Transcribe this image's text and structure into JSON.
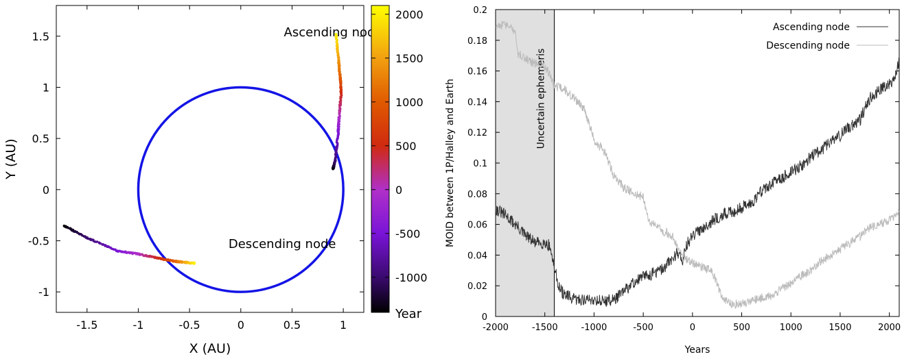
{
  "chart_data": [
    {
      "type": "scatter",
      "xlabel": "X (AU)",
      "ylabel": "Y (AU)",
      "xlim": [
        -1.8,
        1.2
      ],
      "ylim": [
        -1.2,
        1.8
      ],
      "xticks": [
        -1.5,
        -1,
        -0.5,
        0,
        0.5,
        1
      ],
      "yticks": [
        -1,
        -0.5,
        0,
        0.5,
        1,
        1.5
      ],
      "xtick_labels": [
        "-1.5",
        "-1",
        "-0.5",
        "0",
        "0.5",
        "1"
      ],
      "ytick_labels": [
        "-1",
        "-0.5",
        "0",
        "0.5",
        "1",
        "1.5"
      ],
      "earth_orbit": {
        "center": [
          0,
          0
        ],
        "radius": 1.0,
        "color": "#1414e6"
      },
      "colorbar": {
        "label": "Year",
        "range": [
          -1400,
          2100
        ],
        "ticks": [
          -1000,
          -500,
          0,
          500,
          1000,
          1500,
          2000
        ],
        "tick_labels": [
          "-1000",
          "-500",
          "0",
          "500",
          "1000",
          "1500",
          "2000"
        ],
        "stops": [
          {
            "year": -1400,
            "color": "#000000"
          },
          {
            "year": -1000,
            "color": "#3a0a6e"
          },
          {
            "year": -500,
            "color": "#7a14d8"
          },
          {
            "year": 0,
            "color": "#b030c8"
          },
          {
            "year": 500,
            "color": "#d02a10"
          },
          {
            "year": 1000,
            "color": "#e05a00"
          },
          {
            "year": 1500,
            "color": "#f2a010"
          },
          {
            "year": 2100,
            "color": "#ffff00"
          }
        ]
      },
      "series": [
        {
          "name": "Ascending node",
          "points": [
            {
              "year": -1400,
              "x": 0.9,
              "y": 0.2
            },
            {
              "year": -1000,
              "x": 0.92,
              "y": 0.28
            },
            {
              "year": -500,
              "x": 0.95,
              "y": 0.55
            },
            {
              "year": 0,
              "x": 0.96,
              "y": 0.72
            },
            {
              "year": 500,
              "x": 0.98,
              "y": 0.95
            },
            {
              "year": 1000,
              "x": 0.97,
              "y": 1.1
            },
            {
              "year": 1500,
              "x": 0.95,
              "y": 1.3
            },
            {
              "year": 2000,
              "x": 0.93,
              "y": 1.52
            }
          ]
        },
        {
          "name": "Descending node",
          "points": [
            {
              "year": -1400,
              "x": -1.73,
              "y": -0.35
            },
            {
              "year": -1000,
              "x": -1.5,
              "y": -0.47
            },
            {
              "year": -500,
              "x": -1.2,
              "y": -0.6
            },
            {
              "year": 0,
              "x": -1.0,
              "y": -0.63
            },
            {
              "year": 500,
              "x": -0.8,
              "y": -0.67
            },
            {
              "year": 1000,
              "x": -0.65,
              "y": -0.7
            },
            {
              "year": 1500,
              "x": -0.55,
              "y": -0.71
            },
            {
              "year": 2000,
              "x": -0.45,
              "y": -0.72
            }
          ]
        }
      ],
      "annotations": [
        {
          "text": "Ascending node",
          "x": 0.42,
          "y": 1.5
        },
        {
          "text": "Descending node",
          "x": -0.12,
          "y": -0.57
        }
      ]
    },
    {
      "type": "line",
      "xlabel": "Years",
      "ylabel": "MOID between 1P/Halley and Earth",
      "xlim": [
        -2000,
        2100
      ],
      "ylim": [
        0,
        0.2
      ],
      "xticks": [
        -2000,
        -1500,
        -1000,
        -500,
        0,
        500,
        1000,
        1500,
        2000
      ],
      "yticks": [
        0,
        0.02,
        0.04,
        0.06,
        0.08,
        0.1,
        0.12,
        0.14,
        0.16,
        0.18,
        0.2
      ],
      "xtick_labels": [
        "-2000",
        "-1500",
        "-1000",
        "-500",
        "0",
        "500",
        "1000",
        "1500",
        "2000"
      ],
      "ytick_labels": [
        "0",
        "0.02",
        "0.04",
        "0.06",
        "0.08",
        "0.1",
        "0.12",
        "0.14",
        "0.16",
        "0.18",
        "0.2"
      ],
      "shaded_region": {
        "x_from": -2000,
        "x_to": -1404,
        "label": "Uncertain ephemeris",
        "color": "#e0e0e0"
      },
      "legend": "top-right",
      "series": [
        {
          "name": "Ascending node",
          "color": "#333333",
          "noise": 0.004,
          "x": [
            -2000,
            -1900,
            -1800,
            -1700,
            -1600,
            -1500,
            -1450,
            -1404,
            -1350,
            -1300,
            -1200,
            -1100,
            -1000,
            -900,
            -800,
            -700,
            -600,
            -500,
            -400,
            -300,
            -200,
            -150,
            -100,
            -50,
            0,
            100,
            200,
            300,
            400,
            500,
            600,
            700,
            800,
            900,
            1000,
            1100,
            1200,
            1300,
            1400,
            1500,
            1600,
            1700,
            1800,
            1900,
            2000,
            2060,
            2100
          ],
          "y": [
            0.07,
            0.066,
            0.06,
            0.053,
            0.048,
            0.048,
            0.046,
            0.032,
            0.018,
            0.014,
            0.011,
            0.011,
            0.011,
            0.01,
            0.011,
            0.016,
            0.022,
            0.026,
            0.028,
            0.031,
            0.038,
            0.042,
            0.037,
            0.048,
            0.052,
            0.058,
            0.062,
            0.066,
            0.068,
            0.071,
            0.074,
            0.082,
            0.086,
            0.09,
            0.094,
            0.098,
            0.104,
            0.108,
            0.114,
            0.118,
            0.124,
            0.128,
            0.142,
            0.148,
            0.152,
            0.156,
            0.168
          ]
        },
        {
          "name": "Descending node",
          "color": "#bbbbbb",
          "noise": 0.003,
          "x": [
            -2000,
            -1900,
            -1800,
            -1780,
            -1700,
            -1600,
            -1500,
            -1450,
            -1404,
            -1300,
            -1200,
            -1100,
            -1060,
            -1000,
            -900,
            -800,
            -700,
            -600,
            -500,
            -460,
            -400,
            -300,
            -200,
            -150,
            -100,
            0,
            100,
            200,
            300,
            400,
            500,
            600,
            700,
            800,
            900,
            1000,
            1100,
            1200,
            1300,
            1400,
            1500,
            1600,
            1700,
            1800,
            1900,
            2000,
            2100
          ],
          "y": [
            0.19,
            0.19,
            0.186,
            0.172,
            0.168,
            0.165,
            0.163,
            0.158,
            0.15,
            0.148,
            0.142,
            0.135,
            0.128,
            0.115,
            0.108,
            0.092,
            0.084,
            0.08,
            0.078,
            0.065,
            0.06,
            0.056,
            0.052,
            0.046,
            0.038,
            0.035,
            0.032,
            0.03,
            0.012,
            0.008,
            0.008,
            0.01,
            0.012,
            0.013,
            0.018,
            0.022,
            0.026,
            0.03,
            0.036,
            0.04,
            0.044,
            0.048,
            0.052,
            0.058,
            0.06,
            0.063,
            0.068
          ]
        }
      ]
    }
  ]
}
